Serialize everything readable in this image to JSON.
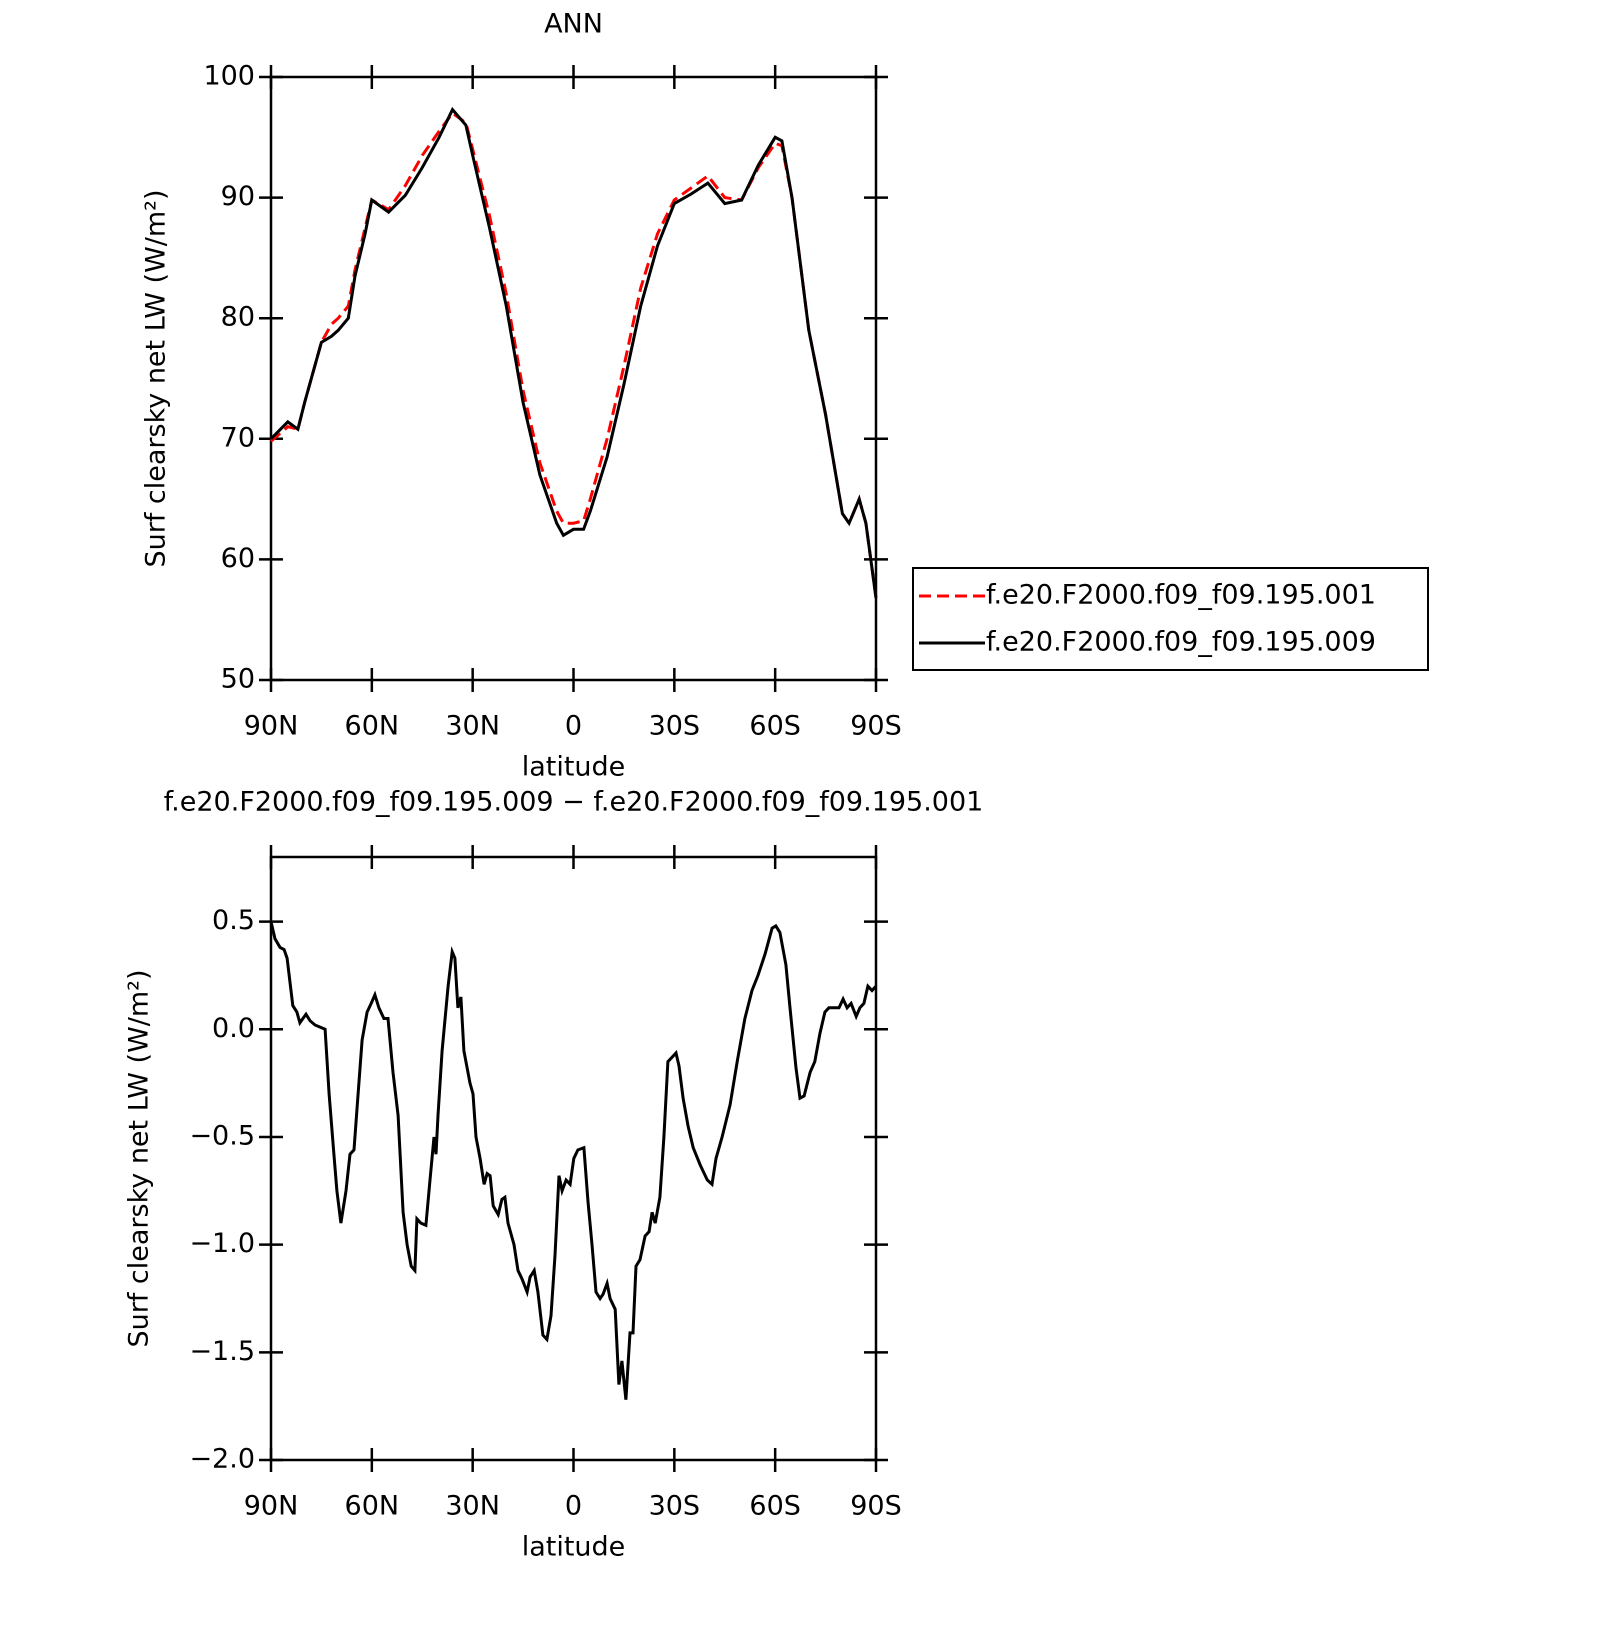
{
  "chart_data": [
    {
      "type": "line",
      "title": "ANN",
      "xlabel": "latitude",
      "ylabel": "Surf clearsky net LW (W/m²)",
      "x": [
        90,
        85,
        82,
        80,
        75,
        72,
        70,
        67,
        65,
        62,
        60,
        55,
        50,
        45,
        40,
        36,
        32,
        30,
        25,
        20,
        15,
        10,
        5,
        3,
        0,
        -3,
        -5,
        -10,
        -15,
        -20,
        -25,
        -30,
        -35,
        -40,
        -45,
        -50,
        -55,
        -60,
        -62,
        -65,
        -70,
        -75,
        -80,
        -82,
        -85,
        -87,
        -90
      ],
      "series": [
        {
          "name": "f.e20.F2000.f09_f09.195.001",
          "color": "#ff0000",
          "linestyle": "dashed",
          "values": [
            69.8,
            71,
            70.8,
            73,
            78,
            79.5,
            80,
            81,
            84,
            87.5,
            89.8,
            89,
            91,
            93.5,
            95.5,
            97,
            96.2,
            94,
            88.5,
            82,
            74,
            68,
            64,
            63,
            63,
            63.2,
            65,
            70,
            76,
            82.5,
            87,
            89.8,
            90.8,
            91.8,
            90,
            89.8,
            92.5,
            94.5,
            94.3,
            90,
            79,
            72,
            63.8,
            63,
            65,
            63,
            56.8
          ]
        },
        {
          "name": "f.e20.F2000.f09_f09.195.009",
          "color": "#000000",
          "linestyle": "solid",
          "values": [
            70,
            71.4,
            70.8,
            73,
            78,
            78.5,
            79,
            80,
            83.5,
            87,
            89.8,
            88.8,
            90.2,
            92.5,
            95,
            97.3,
            96,
            93.5,
            87.5,
            81,
            73,
            67,
            63,
            62,
            62.5,
            62.5,
            64,
            68.5,
            74.5,
            81,
            86,
            89.5,
            90.3,
            91.2,
            89.5,
            89.8,
            92.7,
            95,
            94.7,
            90,
            79,
            72,
            63.8,
            63,
            65,
            63,
            56.8
          ]
        }
      ],
      "xlim": [
        90,
        -90
      ],
      "xticks": [
        {
          "value": 90,
          "label": "90N"
        },
        {
          "value": 60,
          "label": "60N"
        },
        {
          "value": 30,
          "label": "30N"
        },
        0,
        {
          "value": -30,
          "label": "30S"
        },
        {
          "value": -60,
          "label": "60S"
        },
        {
          "value": -90,
          "label": "90S"
        }
      ],
      "ylim": [
        50,
        100
      ],
      "yticks": [
        50,
        60,
        70,
        80,
        90,
        100
      ],
      "grid": false,
      "legend": "right"
    },
    {
      "type": "line",
      "title": "f.e20.F2000.f09_f09.195.009 − f.e20.F2000.f09_f09.195.001",
      "xlabel": "latitude",
      "ylabel": "Surf clearsky net LW (W/m²)",
      "x": [
        90,
        88.8,
        87.3,
        86.1,
        85.2,
        83.5,
        82.3,
        81.4,
        79.6,
        78.4,
        76.9,
        75.4,
        73.9,
        72.7,
        71.3,
        70.4,
        69.2,
        67.7,
        66.5,
        65.3,
        64.1,
        62.9,
        61.4,
        60.2,
        59.1,
        57.9,
        56.4,
        55.2,
        53.7,
        52.2,
        50.7,
        49.5,
        48.3,
        47.2,
        46.6,
        45.4,
        43.9,
        42.7,
        41.5,
        40.9,
        40.3,
        39.1,
        37.3,
        36.1,
        35.3,
        34.4,
        33.5,
        32.6,
        30.8,
        29.9,
        29.0,
        27.8,
        26.6,
        25.7,
        24.8,
        23.9,
        22.4,
        21.3,
        20.4,
        19.5,
        17.7,
        16.5,
        15.3,
        13.8,
        12.9,
        11.7,
        10.6,
        9.1,
        7.9,
        6.7,
        5.5,
        4.3,
        3.4,
        2.2,
        1.0,
        -0.1,
        -1.3,
        -3.1,
        -4.3,
        -5.5,
        -6.7,
        -7.9,
        -8.8,
        -10.0,
        -10.9,
        -12.4,
        -13.5,
        -14.4,
        -15.6,
        -16.8,
        -17.7,
        -18.6,
        -19.8,
        -21.3,
        -22.5,
        -23.4,
        -24.3,
        -25.7,
        -26.9,
        -28.1,
        -29.3,
        -30.5,
        -31.4,
        -32.6,
        -34.1,
        -35.6,
        -37.7,
        -39.8,
        -41.2,
        -42.4,
        -44.2,
        -46.6,
        -48.7,
        -51.0,
        -53.1,
        -54.9,
        -57.0,
        -59.1,
        -60.2,
        -61.4,
        -63.2,
        -64.4,
        -66.2,
        -67.4,
        -68.6,
        -70.4,
        -71.8,
        -73.3,
        -74.8,
        -76.0,
        -77.5,
        -79.0,
        -80.2,
        -81.4,
        -82.6,
        -84.1,
        -85.2,
        -86.4,
        -87.6,
        -88.8,
        -90
      ],
      "series": [
        {
          "color": "#000000",
          "linestyle": "solid",
          "values": [
            0.5,
            0.42,
            0.38,
            0.37,
            0.33,
            0.11,
            0.08,
            0.03,
            0.07,
            0.04,
            0.02,
            0.01,
            0.0,
            -0.3,
            -0.58,
            -0.75,
            -0.9,
            -0.75,
            -0.58,
            -0.56,
            -0.3,
            -0.05,
            0.08,
            0.12,
            0.16,
            0.1,
            0.05,
            0.05,
            -0.2,
            -0.4,
            -0.85,
            -1.0,
            -1.1,
            -1.12,
            -0.88,
            -0.9,
            -0.91,
            -0.7,
            -0.5,
            -0.58,
            -0.4,
            -0.1,
            0.2,
            0.36,
            0.33,
            0.1,
            0.15,
            -0.1,
            -0.25,
            -0.3,
            -0.5,
            -0.6,
            -0.72,
            -0.67,
            -0.68,
            -0.82,
            -0.86,
            -0.79,
            -0.78,
            -0.9,
            -1.0,
            -1.12,
            -1.16,
            -1.22,
            -1.15,
            -1.12,
            -1.22,
            -1.42,
            -1.44,
            -1.33,
            -1.05,
            -0.68,
            -0.75,
            -0.7,
            -0.72,
            -0.6,
            -0.56,
            -0.55,
            -0.8,
            -1.0,
            -1.22,
            -1.25,
            -1.23,
            -1.18,
            -1.25,
            -1.3,
            -1.65,
            -1.54,
            -1.72,
            -1.41,
            -1.41,
            -1.1,
            -1.07,
            -0.96,
            -0.94,
            -0.85,
            -0.9,
            -0.78,
            -0.5,
            -0.15,
            -0.13,
            -0.11,
            -0.17,
            -0.32,
            -0.45,
            -0.55,
            -0.63,
            -0.7,
            -0.72,
            -0.6,
            -0.5,
            -0.35,
            -0.15,
            0.05,
            0.18,
            0.25,
            0.35,
            0.47,
            0.48,
            0.45,
            0.3,
            0.1,
            -0.18,
            -0.32,
            -0.31,
            -0.2,
            -0.15,
            -0.02,
            0.08,
            0.1,
            0.1,
            0.1,
            0.14,
            0.1,
            0.12,
            0.06,
            0.1,
            0.12,
            0.2,
            0.18,
            0.2
          ]
        }
      ],
      "xlim": [
        90,
        -90
      ],
      "xticks": [
        {
          "value": 90,
          "label": "90N"
        },
        {
          "value": 60,
          "label": "60N"
        },
        {
          "value": 30,
          "label": "30N"
        },
        0,
        {
          "value": -30,
          "label": "30S"
        },
        {
          "value": -60,
          "label": "60S"
        },
        {
          "value": -90,
          "label": "90S"
        }
      ],
      "ylim": [
        -2.0,
        0.8
      ],
      "yticks": [
        {
          "value": -2.0,
          "label": "−2.0"
        },
        {
          "value": -1.5,
          "label": "−1.5"
        },
        {
          "value": -1.0,
          "label": "−1.0"
        },
        {
          "value": -0.5,
          "label": "−0.5"
        },
        {
          "value": 0,
          "label": "0.0"
        },
        {
          "value": 0.5,
          "label": "0.5"
        }
      ],
      "grid": false
    }
  ]
}
